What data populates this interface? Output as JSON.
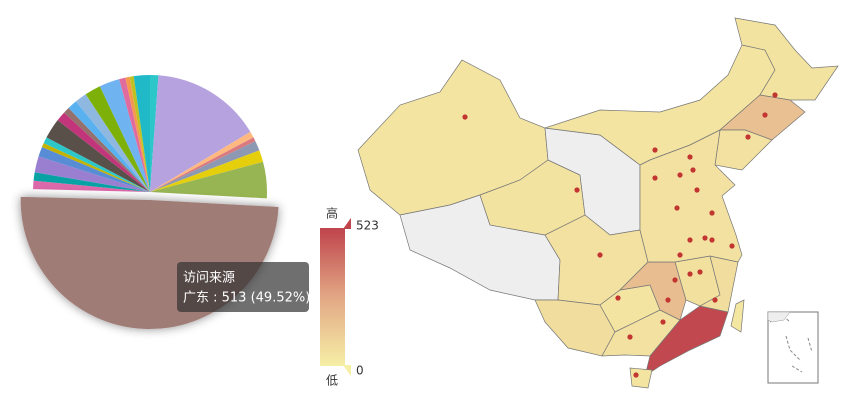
{
  "chart_data": [
    {
      "type": "pie",
      "series_name": "访问来源",
      "categories": [
        null,
        null,
        null,
        null,
        null,
        null,
        null,
        "广东",
        null,
        null,
        null,
        null,
        null,
        null,
        null,
        null,
        null,
        null,
        null,
        null,
        null,
        null,
        null,
        null,
        null
      ],
      "values": [
        12,
        158,
        9,
        6,
        14,
        17,
        52,
        513,
        12,
        12,
        23,
        14,
        6,
        9,
        29,
        14,
        9,
        14,
        17,
        23,
        29,
        9,
        6,
        6,
        23
      ],
      "colors": [
        "#2ec7c9",
        "#b6a2de",
        "#ffb980",
        "#d87a80",
        "#8d98b3",
        "#e5cf0d",
        "#97b552",
        "#a07b76",
        "#dc69aa",
        "#07a2a4",
        "#9a7fd1",
        "#588dd5",
        "#c4b200",
        "#2ec7c9",
        "#59504a",
        "#c2357b",
        "#95706d",
        "#5ab1ef",
        "#8fb8e0",
        "#7eb00a",
        "#6fb3f0",
        "#e06c9f",
        "#f5994e",
        "#c1c123",
        "#1fb9c7"
      ],
      "tooltip": {
        "title": "访问来源",
        "text": "广东 : 513 (49.52%)"
      }
    },
    {
      "type": "map",
      "values": [
        40,
        null,
        45,
        null,
        40,
        45,
        170,
        50,
        50,
        60,
        40,
        50,
        513,
        40,
        180,
        55,
        60,
        30,
        50
      ],
      "visual_map": {
        "min": 0,
        "max": 523,
        "text": [
          "高",
          "低"
        ],
        "colors": [
          "#f6efa6",
          "#e2a785",
          "#bf444c"
        ]
      },
      "null_color": "#eeeeee"
    }
  ]
}
